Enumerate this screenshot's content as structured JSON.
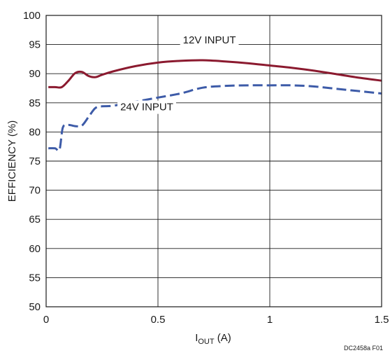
{
  "chart_data": {
    "type": "line",
    "title": "",
    "ylabel": "EFFICIENCY (%)",
    "xlabel": {
      "main": "I",
      "sub": "OUT",
      "unit": " (A)"
    },
    "xlim": [
      0,
      1.5
    ],
    "ylim": [
      50,
      100
    ],
    "x_ticks": [
      0,
      0.5,
      1,
      1.5
    ],
    "x_tick_labels": [
      "0",
      "0.5",
      "1",
      "1.5"
    ],
    "y_ticks": [
      50,
      55,
      60,
      65,
      70,
      75,
      80,
      85,
      90,
      95,
      100
    ],
    "y_tick_labels": [
      "50",
      "55",
      "60",
      "65",
      "70",
      "75",
      "80",
      "85",
      "90",
      "95",
      "100"
    ],
    "grid": true,
    "series": [
      {
        "name": "12V INPUT",
        "color": "#8b1a2f",
        "dash": "solid",
        "x": [
          0.01,
          0.04,
          0.07,
          0.1,
          0.13,
          0.16,
          0.19,
          0.22,
          0.25,
          0.3,
          0.4,
          0.5,
          0.6,
          0.7,
          0.8,
          0.9,
          1.0,
          1.1,
          1.2,
          1.3,
          1.4,
          1.5
        ],
        "y": [
          87.7,
          87.7,
          87.7,
          88.8,
          90.1,
          90.3,
          89.6,
          89.4,
          89.8,
          90.4,
          91.3,
          91.9,
          92.2,
          92.3,
          92.1,
          91.8,
          91.4,
          91.0,
          90.5,
          89.9,
          89.3,
          88.8
        ]
      },
      {
        "name": "24V INPUT",
        "color": "#3d5ba8",
        "dash": "dashed",
        "x": [
          0.01,
          0.04,
          0.06,
          0.075,
          0.1,
          0.13,
          0.16,
          0.19,
          0.22,
          0.25,
          0.3,
          0.4,
          0.5,
          0.6,
          0.7,
          0.8,
          0.9,
          1.0,
          1.1,
          1.2,
          1.3,
          1.4,
          1.5
        ],
        "y": [
          77.2,
          77.2,
          77.0,
          80.8,
          81.2,
          81.0,
          81.1,
          82.6,
          84.1,
          84.4,
          84.5,
          85.2,
          85.9,
          86.6,
          87.6,
          87.9,
          88.0,
          88.0,
          88.0,
          87.8,
          87.4,
          87.0,
          86.6
        ]
      }
    ],
    "annotations": [
      {
        "text": "12V INPUT",
        "series": 0,
        "anchor_x": 0.73,
        "anchor_y": 95.2
      },
      {
        "text": "24V INPUT",
        "series": 1,
        "anchor_x": 0.45,
        "anchor_y": 83.7
      }
    ],
    "figure_code": "DC2458a F01"
  }
}
